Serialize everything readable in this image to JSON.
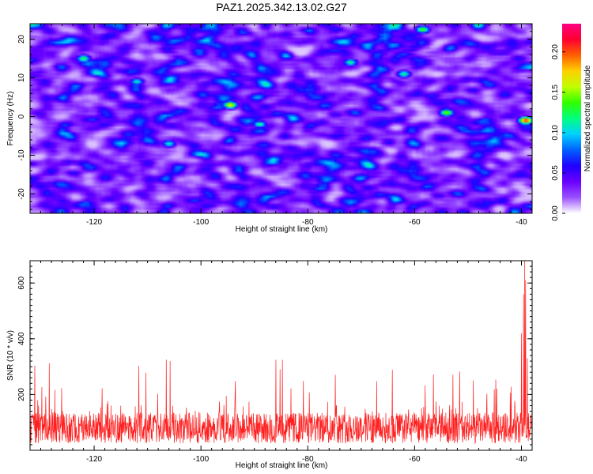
{
  "figure_title": "PAZ1.2025.342.13.02.G27",
  "chart_data": [
    {
      "type": "heatmap",
      "title": "PAZ1.2025.342.13.02.G27",
      "xlabel": "Height of straight line (km)",
      "ylabel": "Frequency (Hz)",
      "xlim": [
        -132,
        -38
      ],
      "ylim": [
        -25,
        24
      ],
      "xticks": [
        -120,
        -100,
        -80,
        -60,
        -40
      ],
      "xtick_labels": [
        "-120",
        "-100",
        "-80",
        "-60",
        "-40"
      ],
      "yticks": [
        -20,
        -10,
        0,
        10,
        20
      ],
      "ytick_labels": [
        "-20",
        "-10",
        "0",
        "10",
        "20"
      ],
      "colorbar": {
        "label": "Normalized spectral amplitude",
        "range": [
          0.0,
          0.235
        ],
        "ticks": [
          0.0,
          0.05,
          0.1,
          0.15,
          0.2
        ],
        "tick_labels": [
          "0.00",
          "0.05",
          "0.10",
          "0.15",
          "0.20"
        ],
        "colors": [
          "#ffffff",
          "#9a50ff",
          "#6a00ff",
          "#2000ff",
          "#0060ff",
          "#00d0ff",
          "#00ff80",
          "#30ff00",
          "#c0ff00",
          "#ffd000",
          "#ff6000",
          "#ff0030",
          "#ff0080"
        ]
      },
      "background_level": 0.04,
      "peaks": [
        {
          "x": -94.5,
          "f": 3.0,
          "value": 0.17
        },
        {
          "x": -122,
          "f": 15.0,
          "value": 0.13
        },
        {
          "x": -89,
          "f": -2.0,
          "value": 0.12
        },
        {
          "x": -58.5,
          "f": 22.5,
          "value": 0.14
        },
        {
          "x": -54,
          "f": 1.0,
          "value": 0.15
        },
        {
          "x": -39.2,
          "f": -1.0,
          "value": 0.21
        },
        {
          "x": -72,
          "f": 14.0,
          "value": 0.12
        },
        {
          "x": -106,
          "f": -7.0,
          "value": 0.11
        },
        {
          "x": -62,
          "f": 11.0,
          "value": 0.12
        },
        {
          "x": -112,
          "f": 9.0,
          "value": 0.11
        }
      ]
    },
    {
      "type": "line",
      "title": "",
      "xlabel": "Height of straight line (km)",
      "ylabel": "SNR (10 * v/v)",
      "xlim": [
        -132,
        -38
      ],
      "ylim": [
        0,
        680
      ],
      "xticks": [
        -120,
        -100,
        -80,
        -60,
        -40
      ],
      "xtick_labels": [
        "-120",
        "-100",
        "-80",
        "-60",
        "-40"
      ],
      "yticks": [
        200,
        400,
        600
      ],
      "ytick_labels": [
        "200",
        "400",
        "600"
      ],
      "series": [
        {
          "name": "SNR",
          "color": "#ff2020",
          "x_range": [
            -132,
            -38
          ],
          "baseline_mean": 100,
          "typical_max": 330,
          "spikes": [
            {
              "x": -40.0,
              "value": 420
            },
            {
              "x": -39.6,
              "value": 560
            },
            {
              "x": -39.4,
              "value": 680
            },
            {
              "x": -39.2,
              "value": 610
            },
            {
              "x": -38.9,
              "value": 330
            },
            {
              "x": -106.5,
              "value": 325
            },
            {
              "x": -105.8,
              "value": 320
            }
          ]
        }
      ]
    }
  ]
}
